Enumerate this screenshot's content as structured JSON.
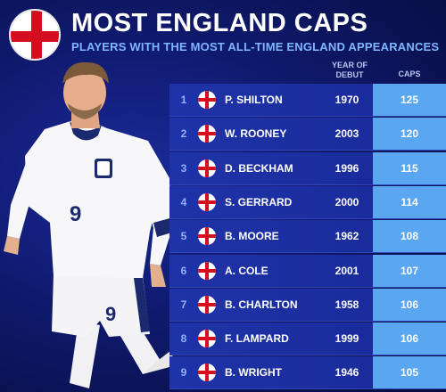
{
  "header": {
    "title": "MOST ENGLAND CAPS",
    "subtitle": "PLAYERS WITH THE MOST ALL-TIME ENGLAND APPEARANCES"
  },
  "columns": {
    "year_line1": "YEAR OF",
    "year_line2": "DEBUT",
    "caps": "CAPS"
  },
  "player_shirt_number": "9",
  "rows": [
    {
      "rank": "1",
      "name": "P. SHILTON",
      "debut": "1970",
      "caps": "125"
    },
    {
      "rank": "2",
      "name": "W. ROONEY",
      "debut": "2003",
      "caps": "120"
    },
    {
      "rank": "3",
      "name": "D. BECKHAM",
      "debut": "1996",
      "caps": "115"
    },
    {
      "rank": "4",
      "name": "S. GERRARD",
      "debut": "2000",
      "caps": "114"
    },
    {
      "rank": "5",
      "name": "B. MOORE",
      "debut": "1962",
      "caps": "108"
    },
    {
      "rank": "6",
      "name": "A. COLE",
      "debut": "2001",
      "caps": "107"
    },
    {
      "rank": "7",
      "name": "B. CHARLTON",
      "debut": "1958",
      "caps": "106"
    },
    {
      "rank": "8",
      "name": "F. LAMPARD",
      "debut": "1999",
      "caps": "106"
    },
    {
      "rank": "9",
      "name": "B. WRIGHT",
      "debut": "1946",
      "caps": "105"
    }
  ],
  "colors": {
    "flag_red": "#d40e1f",
    "caps_column": "#5aa6f0",
    "row_bg": "#1f33a8",
    "subtitle": "#7fb6ff"
  }
}
